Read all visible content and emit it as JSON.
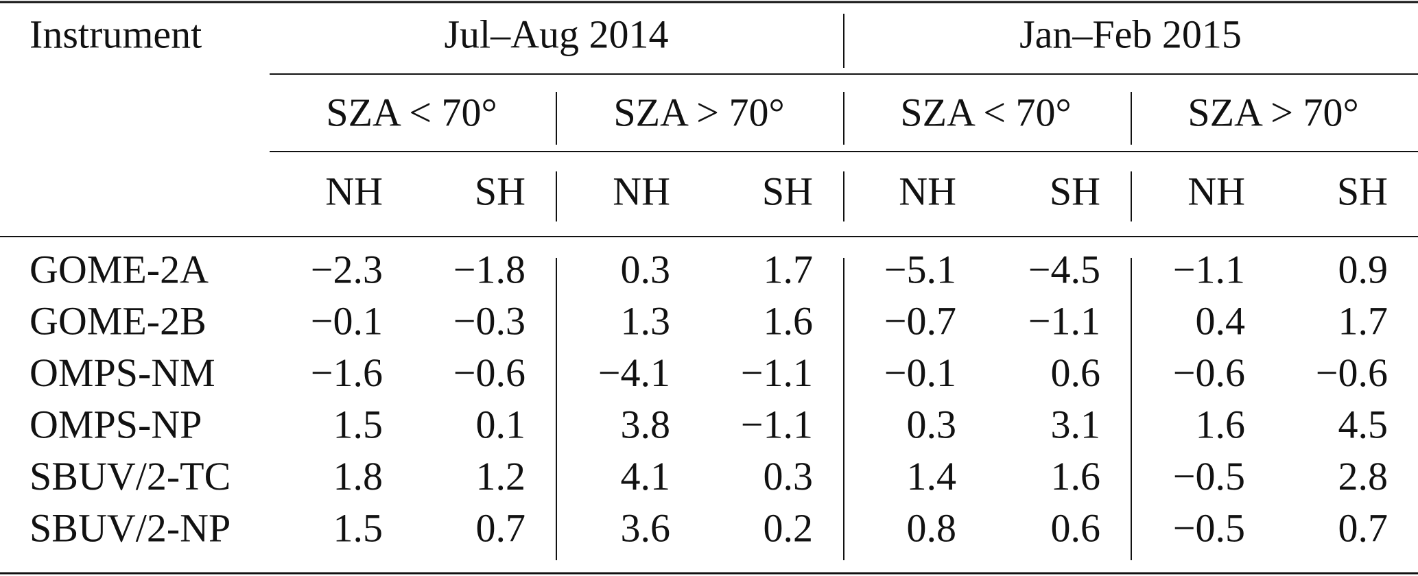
{
  "header": {
    "instrument": "Instrument",
    "periods": [
      "Jul–Aug 2014",
      "Jan–Feb 2015"
    ],
    "sza": [
      "SZA < 70°",
      "SZA > 70°",
      "SZA < 70°",
      "SZA > 70°"
    ],
    "hemispheres": [
      "NH",
      "SH",
      "NH",
      "SH",
      "NH",
      "SH",
      "NH",
      "SH"
    ]
  },
  "table": {
    "rows": [
      {
        "instrument": "GOME-2A",
        "values": [
          "−2.3",
          "−1.8",
          "0.3",
          "1.7",
          "−5.1",
          "−4.5",
          "−1.1",
          "0.9"
        ]
      },
      {
        "instrument": "GOME-2B",
        "values": [
          "−0.1",
          "−0.3",
          "1.3",
          "1.6",
          "−0.7",
          "−1.1",
          "0.4",
          "1.7"
        ]
      },
      {
        "instrument": "OMPS-NM",
        "values": [
          "−1.6",
          "−0.6",
          "−4.1",
          "−1.1",
          "−0.1",
          "0.6",
          "−0.6",
          "−0.6"
        ]
      },
      {
        "instrument": "OMPS-NP",
        "values": [
          "1.5",
          "0.1",
          "3.8",
          "−1.1",
          "0.3",
          "3.1",
          "1.6",
          "4.5"
        ]
      },
      {
        "instrument": "SBUV/2-TC",
        "values": [
          "1.8",
          "1.2",
          "4.1",
          "0.3",
          "1.4",
          "1.6",
          "−0.5",
          "2.8"
        ]
      },
      {
        "instrument": "SBUV/2-NP",
        "values": [
          "1.5",
          "0.7",
          "3.6",
          "0.2",
          "0.8",
          "0.6",
          "−0.5",
          "0.7"
        ]
      }
    ]
  }
}
